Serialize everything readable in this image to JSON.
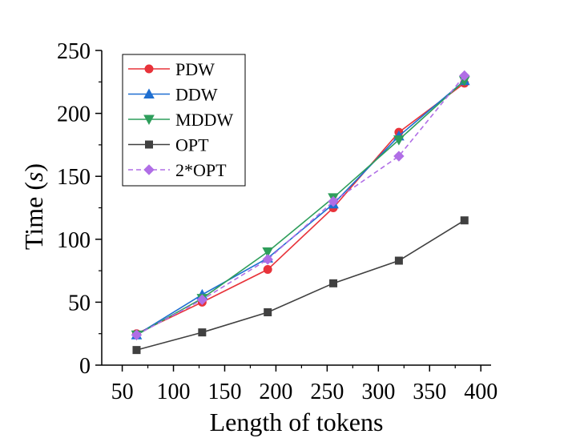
{
  "chart_data": {
    "type": "line",
    "xlabel": "Length of tokens",
    "ylabel_prefix": "Time (",
    "ylabel_var": "s",
    "ylabel_suffix": ")",
    "xlim": [
      30,
      410
    ],
    "ylim": [
      0,
      250
    ],
    "xticks": [
      50,
      100,
      150,
      200,
      250,
      300,
      350,
      400
    ],
    "yticks": [
      0,
      50,
      100,
      150,
      200,
      250
    ],
    "x": [
      64,
      128,
      192,
      256,
      320,
      384
    ],
    "legend_position": "top-left",
    "series": [
      {
        "name": "PDW",
        "color": "#e8333a",
        "marker": "circle",
        "dash": false,
        "values": [
          25,
          50,
          76,
          125,
          185,
          224
        ]
      },
      {
        "name": "DDW",
        "color": "#1f6fd1",
        "marker": "triangle-up",
        "dash": false,
        "values": [
          24,
          56,
          85,
          128,
          182,
          226
        ]
      },
      {
        "name": "MDDW",
        "color": "#2e9e5b",
        "marker": "triangle-down",
        "dash": false,
        "values": [
          24,
          53,
          90,
          133,
          179,
          226
        ]
      },
      {
        "name": "OPT",
        "color": "#404040",
        "marker": "square",
        "dash": false,
        "values": [
          12,
          26,
          42,
          65,
          83,
          115
        ]
      },
      {
        "name": "2*OPT",
        "color": "#b06ee6",
        "marker": "diamond",
        "dash": true,
        "values": [
          24,
          52,
          84,
          130,
          166,
          230
        ]
      }
    ]
  }
}
